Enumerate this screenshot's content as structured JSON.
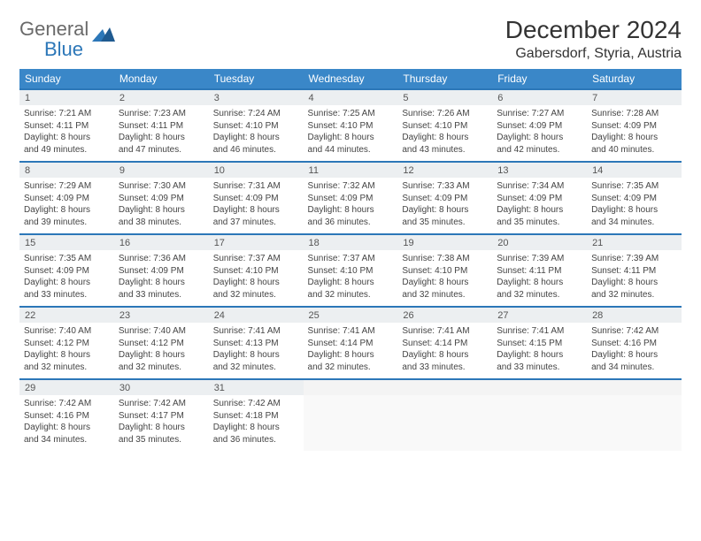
{
  "brand": {
    "general": "General",
    "blue": "Blue"
  },
  "title": "December 2024",
  "location": "Gabersdorf, Styria, Austria",
  "colors": {
    "header_bg": "#3a87c8",
    "header_text": "#ffffff",
    "accent_border": "#2c77b8",
    "daynum_bg": "#eceff1",
    "body_text": "#444444",
    "logo_gray": "#6a6a6a",
    "logo_blue": "#2c77b8",
    "page_bg": "#ffffff"
  },
  "typography": {
    "title_fontsize": 28,
    "location_fontsize": 16,
    "dow_fontsize": 12,
    "daynum_fontsize": 11,
    "cell_fontsize": 10,
    "font_family": "Arial"
  },
  "days_of_week": [
    "Sunday",
    "Monday",
    "Tuesday",
    "Wednesday",
    "Thursday",
    "Friday",
    "Saturday"
  ],
  "labels": {
    "sunrise": "Sunrise:",
    "sunset": "Sunset:",
    "daylight": "Daylight:"
  },
  "weeks": [
    [
      {
        "n": "1",
        "sr": "7:21 AM",
        "ss": "4:11 PM",
        "dl1": "8 hours",
        "dl2": "and 49 minutes."
      },
      {
        "n": "2",
        "sr": "7:23 AM",
        "ss": "4:11 PM",
        "dl1": "8 hours",
        "dl2": "and 47 minutes."
      },
      {
        "n": "3",
        "sr": "7:24 AM",
        "ss": "4:10 PM",
        "dl1": "8 hours",
        "dl2": "and 46 minutes."
      },
      {
        "n": "4",
        "sr": "7:25 AM",
        "ss": "4:10 PM",
        "dl1": "8 hours",
        "dl2": "and 44 minutes."
      },
      {
        "n": "5",
        "sr": "7:26 AM",
        "ss": "4:10 PM",
        "dl1": "8 hours",
        "dl2": "and 43 minutes."
      },
      {
        "n": "6",
        "sr": "7:27 AM",
        "ss": "4:09 PM",
        "dl1": "8 hours",
        "dl2": "and 42 minutes."
      },
      {
        "n": "7",
        "sr": "7:28 AM",
        "ss": "4:09 PM",
        "dl1": "8 hours",
        "dl2": "and 40 minutes."
      }
    ],
    [
      {
        "n": "8",
        "sr": "7:29 AM",
        "ss": "4:09 PM",
        "dl1": "8 hours",
        "dl2": "and 39 minutes."
      },
      {
        "n": "9",
        "sr": "7:30 AM",
        "ss": "4:09 PM",
        "dl1": "8 hours",
        "dl2": "and 38 minutes."
      },
      {
        "n": "10",
        "sr": "7:31 AM",
        "ss": "4:09 PM",
        "dl1": "8 hours",
        "dl2": "and 37 minutes."
      },
      {
        "n": "11",
        "sr": "7:32 AM",
        "ss": "4:09 PM",
        "dl1": "8 hours",
        "dl2": "and 36 minutes."
      },
      {
        "n": "12",
        "sr": "7:33 AM",
        "ss": "4:09 PM",
        "dl1": "8 hours",
        "dl2": "and 35 minutes."
      },
      {
        "n": "13",
        "sr": "7:34 AM",
        "ss": "4:09 PM",
        "dl1": "8 hours",
        "dl2": "and 35 minutes."
      },
      {
        "n": "14",
        "sr": "7:35 AM",
        "ss": "4:09 PM",
        "dl1": "8 hours",
        "dl2": "and 34 minutes."
      }
    ],
    [
      {
        "n": "15",
        "sr": "7:35 AM",
        "ss": "4:09 PM",
        "dl1": "8 hours",
        "dl2": "and 33 minutes."
      },
      {
        "n": "16",
        "sr": "7:36 AM",
        "ss": "4:09 PM",
        "dl1": "8 hours",
        "dl2": "and 33 minutes."
      },
      {
        "n": "17",
        "sr": "7:37 AM",
        "ss": "4:10 PM",
        "dl1": "8 hours",
        "dl2": "and 32 minutes."
      },
      {
        "n": "18",
        "sr": "7:37 AM",
        "ss": "4:10 PM",
        "dl1": "8 hours",
        "dl2": "and 32 minutes."
      },
      {
        "n": "19",
        "sr": "7:38 AM",
        "ss": "4:10 PM",
        "dl1": "8 hours",
        "dl2": "and 32 minutes."
      },
      {
        "n": "20",
        "sr": "7:39 AM",
        "ss": "4:11 PM",
        "dl1": "8 hours",
        "dl2": "and 32 minutes."
      },
      {
        "n": "21",
        "sr": "7:39 AM",
        "ss": "4:11 PM",
        "dl1": "8 hours",
        "dl2": "and 32 minutes."
      }
    ],
    [
      {
        "n": "22",
        "sr": "7:40 AM",
        "ss": "4:12 PM",
        "dl1": "8 hours",
        "dl2": "and 32 minutes."
      },
      {
        "n": "23",
        "sr": "7:40 AM",
        "ss": "4:12 PM",
        "dl1": "8 hours",
        "dl2": "and 32 minutes."
      },
      {
        "n": "24",
        "sr": "7:41 AM",
        "ss": "4:13 PM",
        "dl1": "8 hours",
        "dl2": "and 32 minutes."
      },
      {
        "n": "25",
        "sr": "7:41 AM",
        "ss": "4:14 PM",
        "dl1": "8 hours",
        "dl2": "and 32 minutes."
      },
      {
        "n": "26",
        "sr": "7:41 AM",
        "ss": "4:14 PM",
        "dl1": "8 hours",
        "dl2": "and 33 minutes."
      },
      {
        "n": "27",
        "sr": "7:41 AM",
        "ss": "4:15 PM",
        "dl1": "8 hours",
        "dl2": "and 33 minutes."
      },
      {
        "n": "28",
        "sr": "7:42 AM",
        "ss": "4:16 PM",
        "dl1": "8 hours",
        "dl2": "and 34 minutes."
      }
    ],
    [
      {
        "n": "29",
        "sr": "7:42 AM",
        "ss": "4:16 PM",
        "dl1": "8 hours",
        "dl2": "and 34 minutes."
      },
      {
        "n": "30",
        "sr": "7:42 AM",
        "ss": "4:17 PM",
        "dl1": "8 hours",
        "dl2": "and 35 minutes."
      },
      {
        "n": "31",
        "sr": "7:42 AM",
        "ss": "4:18 PM",
        "dl1": "8 hours",
        "dl2": "and 36 minutes."
      },
      null,
      null,
      null,
      null
    ]
  ]
}
